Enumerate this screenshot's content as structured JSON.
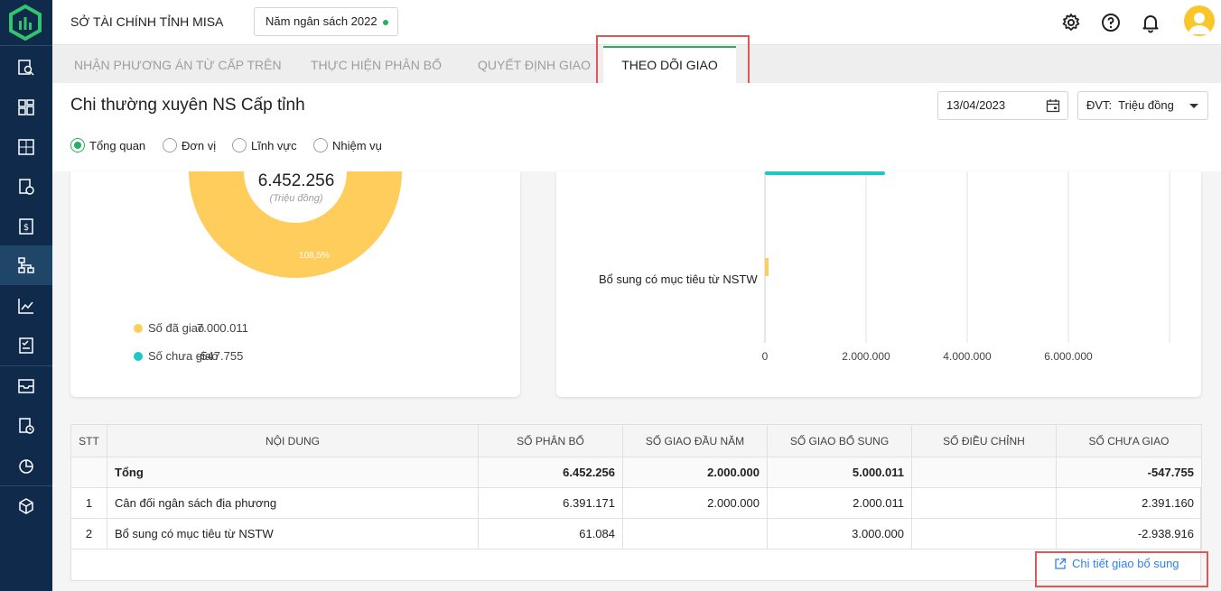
{
  "header": {
    "org_name": "SỞ TÀI CHÍNH TỈNH MISA",
    "budget_year": "Năm ngân sách 2022"
  },
  "tabs": [
    {
      "label": "NHẬN PHƯƠNG ÁN TỪ CẤP TRÊN"
    },
    {
      "label": "THỰC HIỆN PHÂN BỔ"
    },
    {
      "label": "QUYẾT ĐỊNH GIAO"
    },
    {
      "label": "THEO DÕI GIAO"
    }
  ],
  "page": {
    "title": "Chi thường xuyên NS Cấp tỉnh",
    "date": "13/04/2023",
    "unit_select": "ĐVT:  Triệu đồng"
  },
  "view_options": [
    {
      "label": "Tổng quan",
      "checked": true
    },
    {
      "label": "Đơn vị",
      "checked": false
    },
    {
      "label": "Lĩnh vực",
      "checked": false
    },
    {
      "label": "Nhiệm vụ",
      "checked": false
    }
  ],
  "donut": {
    "total": "6.452.256",
    "unit": "(Triệu đồng)",
    "percent_label": "108,5%",
    "legend": [
      {
        "label": "Số đã giao",
        "value": "7.000.011",
        "color": "#ffcd5c"
      },
      {
        "label": "Số chưa giao",
        "value": "-547.755",
        "color": "#1fc6c6"
      }
    ]
  },
  "bar_chart": {
    "category_label": "Bổ sung có mục tiêu từ NSTW",
    "ticks": [
      "0",
      "2.000.000",
      "4.000.000",
      "6.000.000"
    ]
  },
  "table": {
    "headers": [
      "STT",
      "NỘI DUNG",
      "SỐ PHÂN BỔ",
      "SỐ GIAO ĐẦU NĂM",
      "SỐ GIAO BỔ SUNG",
      "SỐ ĐIỀU CHỈNH",
      "SỐ CHƯA GIAO"
    ],
    "total": {
      "label": "Tổng",
      "phan_bo": "6.452.256",
      "dau_nam": "2.000.000",
      "bo_sung": "5.000.011",
      "dieu_chinh": "",
      "chua_giao": "-547.755"
    },
    "rows": [
      {
        "stt": "1",
        "noi_dung": "Cân đối ngân sách địa phương",
        "phan_bo": "6.391.171",
        "dau_nam": "2.000.000",
        "bo_sung": "2.000.011",
        "dieu_chinh": "",
        "chua_giao": "2.391.160"
      },
      {
        "stt": "2",
        "noi_dung": "Bổ sung có mục tiêu từ NSTW",
        "phan_bo": "61.084",
        "dau_nam": "",
        "bo_sung": "3.000.000",
        "dieu_chinh": "",
        "chua_giao": "-2.938.916"
      }
    ],
    "detail_link": "Chi tiết giao bổ sung"
  },
  "colors": {
    "sidebar_bg": "#0f2a4a",
    "accent_green": "#27ae60",
    "donut_yellow": "#ffcd5c",
    "bar_teal": "#1fc6c6",
    "link_blue": "#2f80ed",
    "highlight_red": "#e05555"
  }
}
